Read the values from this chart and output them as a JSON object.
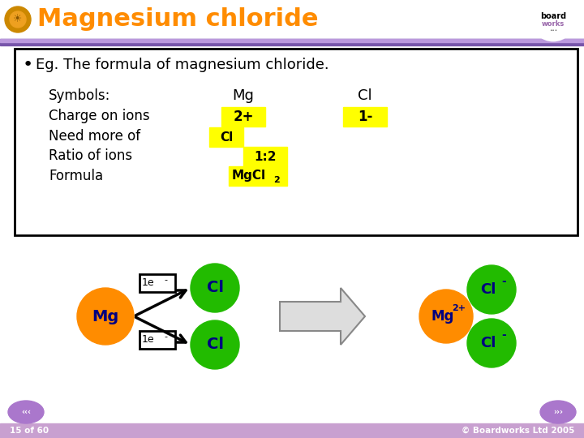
{
  "title": "Magnesium chloride",
  "title_color": "#FF8C00",
  "bg_color": "#FFFFFF",
  "bullet_text": "Eg. The formula of magnesium chloride.",
  "row_labels": [
    "Symbols:",
    "Charge on ions",
    "Need more of",
    "Ratio of ions",
    "Formula"
  ],
  "mg_symbol": "Mg",
  "cl_symbol": "Cl",
  "charge_mg": "2+",
  "charge_cl": "1-",
  "need_more": "Cl",
  "ratio": "1:2",
  "formula_main": "MgCl",
  "formula_sub": "2",
  "yellow": "#FFFF00",
  "orange": "#FF8C00",
  "green": "#22BB00",
  "dark_blue": "#000080",
  "black": "#000000",
  "white": "#FFFFFF",
  "footer_text": "15 of 60",
  "copyright_text": "© Boardworks Ltd 2005",
  "footer_bg": "#C8A0D0",
  "purple_stripe": "#AA77CC",
  "purple_btn": "#AA77CC"
}
